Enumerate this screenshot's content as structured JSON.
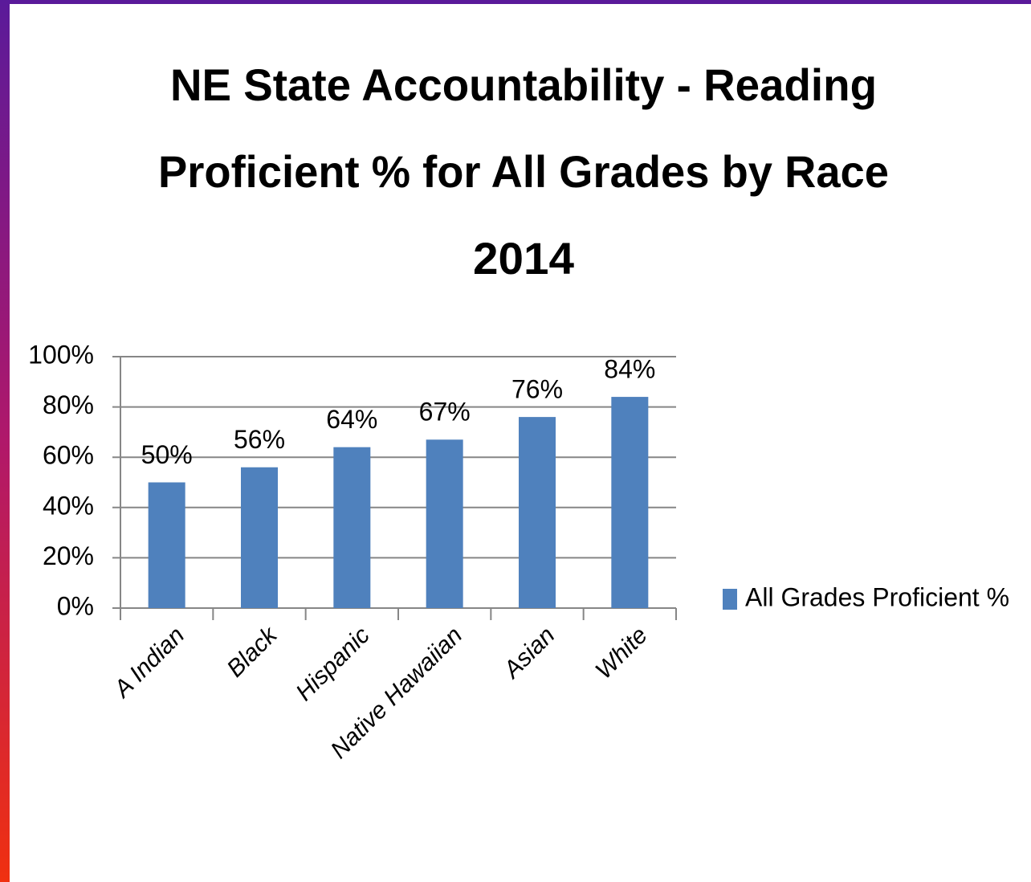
{
  "chart_data": {
    "type": "bar",
    "title": [
      "NE State Accountability - Reading",
      "Proficient % for All Grades by Race",
      "2014"
    ],
    "categories": [
      "A Indian",
      "Black",
      "Hispanic",
      "Native Hawaiian",
      "Asian",
      "White"
    ],
    "series": [
      {
        "name": "All Grades Proficient %",
        "color": "#4f81bd",
        "values": [
          50,
          56,
          64,
          67,
          76,
          84
        ],
        "value_labels": [
          "50%",
          "56%",
          "64%",
          "67%",
          "76%",
          "84%"
        ]
      }
    ],
    "ylim": [
      0,
      100
    ],
    "yticks": [
      {
        "value": 0,
        "label": "0%"
      },
      {
        "value": 20,
        "label": "20%"
      },
      {
        "value": 40,
        "label": "40%"
      },
      {
        "value": 60,
        "label": "60%"
      },
      {
        "value": 80,
        "label": "80%"
      },
      {
        "value": 100,
        "label": "100%"
      }
    ],
    "grid": true,
    "legend": "right"
  }
}
